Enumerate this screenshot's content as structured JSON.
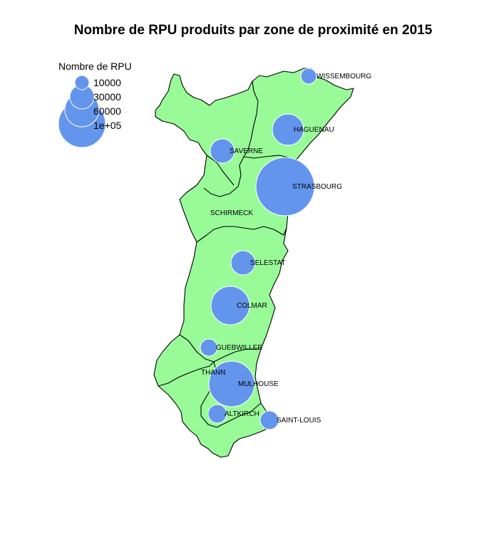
{
  "title": "Nombre de RPU produits par zone de proximité en 2015",
  "colors": {
    "land": "#98fb98",
    "bubble": "#6495ed",
    "border": "#000000",
    "bubble_stroke": "#ffffff"
  },
  "legend": {
    "title": "Nombre de RPU",
    "entries": [
      {
        "label": "10000",
        "value": 10000
      },
      {
        "label": "30000",
        "value": 30000
      },
      {
        "label": "60000",
        "value": 60000
      },
      {
        "label": "1e+05",
        "value": 100000
      }
    ]
  },
  "zones": [
    {
      "name": "WISSEMBOURG",
      "rpu": 9000
    },
    {
      "name": "HAGUENAU",
      "rpu": 32000
    },
    {
      "name": "SAVERNE",
      "rpu": 19000
    },
    {
      "name": "STRASBOURG",
      "rpu": 120000
    },
    {
      "name": "SCHIRMECK",
      "rpu": 0
    },
    {
      "name": "SELESTAT",
      "rpu": 20000
    },
    {
      "name": "COLMAR",
      "rpu": 48000
    },
    {
      "name": "GUEBWILLER",
      "rpu": 11000
    },
    {
      "name": "THANN",
      "rpu": 0
    },
    {
      "name": "MULHOUSE",
      "rpu": 75000
    },
    {
      "name": "ALTKIRCH",
      "rpu": 11000
    },
    {
      "name": "SAINT-LOUIS",
      "rpu": 11000
    }
  ]
}
